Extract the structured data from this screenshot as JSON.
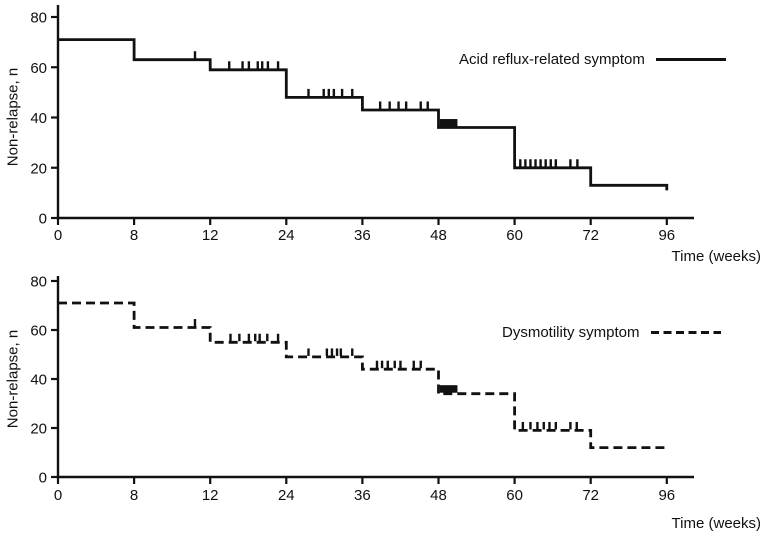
{
  "figure": {
    "y_axis_label": "Non-relapse, n",
    "x_axis_label": "Time (weeks)"
  },
  "chart_data": [
    {
      "type": "line",
      "subtype": "kaplan-meier-step",
      "legend": "Acid reflux-related symptom",
      "line_style": "solid",
      "color": "#111111",
      "xlabel": "Time (weeks)",
      "ylabel": "Non-relapse, n",
      "x_ticks": [
        0,
        8,
        12,
        24,
        36,
        48,
        60,
        72,
        96
      ],
      "y_ticks": [
        0,
        20,
        40,
        60,
        80
      ],
      "ylim": [
        0,
        80
      ],
      "x_axis_note": "non-linear axis: labeled ticks equally spaced",
      "steps": [
        [
          0,
          71
        ],
        [
          8,
          63
        ],
        [
          12,
          59
        ],
        [
          24,
          48
        ],
        [
          36,
          43
        ],
        [
          48,
          36
        ],
        [
          60,
          20
        ],
        [
          72,
          13
        ],
        [
          96,
          11
        ]
      ],
      "censor_marks": [
        [
          11.2,
          63
        ],
        [
          15.0,
          59
        ],
        [
          17.1,
          59
        ],
        [
          18.1,
          59
        ],
        [
          19.5,
          59
        ],
        [
          20.2,
          59
        ],
        [
          21.1,
          59
        ],
        [
          22.7,
          59
        ],
        [
          27.5,
          48
        ],
        [
          29.9,
          48
        ],
        [
          30.7,
          48
        ],
        [
          31.5,
          48
        ],
        [
          32.8,
          48
        ],
        [
          34.4,
          48
        ],
        [
          38.8,
          43
        ],
        [
          40.3,
          43
        ],
        [
          41.7,
          43
        ],
        [
          42.9,
          43
        ],
        [
          45.2,
          43
        ],
        [
          46.3,
          43
        ],
        [
          48.4,
          36
        ],
        [
          48.7,
          36
        ],
        [
          49.0,
          36
        ],
        [
          49.3,
          36
        ],
        [
          49.6,
          36
        ],
        [
          49.9,
          36
        ],
        [
          50.2,
          36
        ],
        [
          50.5,
          36
        ],
        [
          50.8,
          36
        ],
        [
          60.9,
          20
        ],
        [
          61.7,
          20
        ],
        [
          62.5,
          20
        ],
        [
          63.3,
          20
        ],
        [
          64.1,
          20
        ],
        [
          64.9,
          20
        ],
        [
          65.7,
          20
        ],
        [
          66.5,
          20
        ],
        [
          68.8,
          20
        ],
        [
          69.9,
          20
        ]
      ]
    },
    {
      "type": "line",
      "subtype": "kaplan-meier-step",
      "legend": "Dysmotility symptom",
      "line_style": "dashed",
      "color": "#111111",
      "xlabel": "Time (weeks)",
      "ylabel": "Non-relapse, n",
      "x_ticks": [
        0,
        8,
        12,
        24,
        36,
        48,
        60,
        72,
        96
      ],
      "y_ticks": [
        0,
        20,
        40,
        60,
        80
      ],
      "ylim": [
        0,
        80
      ],
      "x_axis_note": "non-linear axis: labeled ticks equally spaced",
      "steps": [
        [
          0,
          71
        ],
        [
          8,
          61
        ],
        [
          12,
          55
        ],
        [
          24,
          49
        ],
        [
          36,
          44
        ],
        [
          48,
          34
        ],
        [
          60,
          19
        ],
        [
          72,
          12
        ],
        [
          96,
          11
        ]
      ],
      "censor_marks": [
        [
          11.2,
          61
        ],
        [
          15.2,
          55
        ],
        [
          16.6,
          55
        ],
        [
          18.1,
          55
        ],
        [
          19.1,
          55
        ],
        [
          19.8,
          55
        ],
        [
          21.0,
          55
        ],
        [
          22.7,
          55
        ],
        [
          27.5,
          49
        ],
        [
          30.4,
          49
        ],
        [
          31.2,
          49
        ],
        [
          32.0,
          49
        ],
        [
          32.6,
          49
        ],
        [
          34.4,
          49
        ],
        [
          38.3,
          44
        ],
        [
          39.1,
          44
        ],
        [
          40.0,
          44
        ],
        [
          41.1,
          44
        ],
        [
          42.0,
          44
        ],
        [
          44.1,
          44
        ],
        [
          45.2,
          44
        ],
        [
          48.4,
          34
        ],
        [
          48.7,
          34
        ],
        [
          49.0,
          34
        ],
        [
          49.3,
          34
        ],
        [
          49.6,
          34
        ],
        [
          49.9,
          34
        ],
        [
          50.2,
          34
        ],
        [
          50.5,
          34
        ],
        [
          50.8,
          34
        ],
        [
          61.3,
          19
        ],
        [
          62.5,
          19
        ],
        [
          63.6,
          19
        ],
        [
          64.6,
          19
        ],
        [
          65.5,
          19
        ],
        [
          66.5,
          19
        ],
        [
          68.8,
          19
        ],
        [
          69.8,
          19
        ]
      ]
    }
  ]
}
